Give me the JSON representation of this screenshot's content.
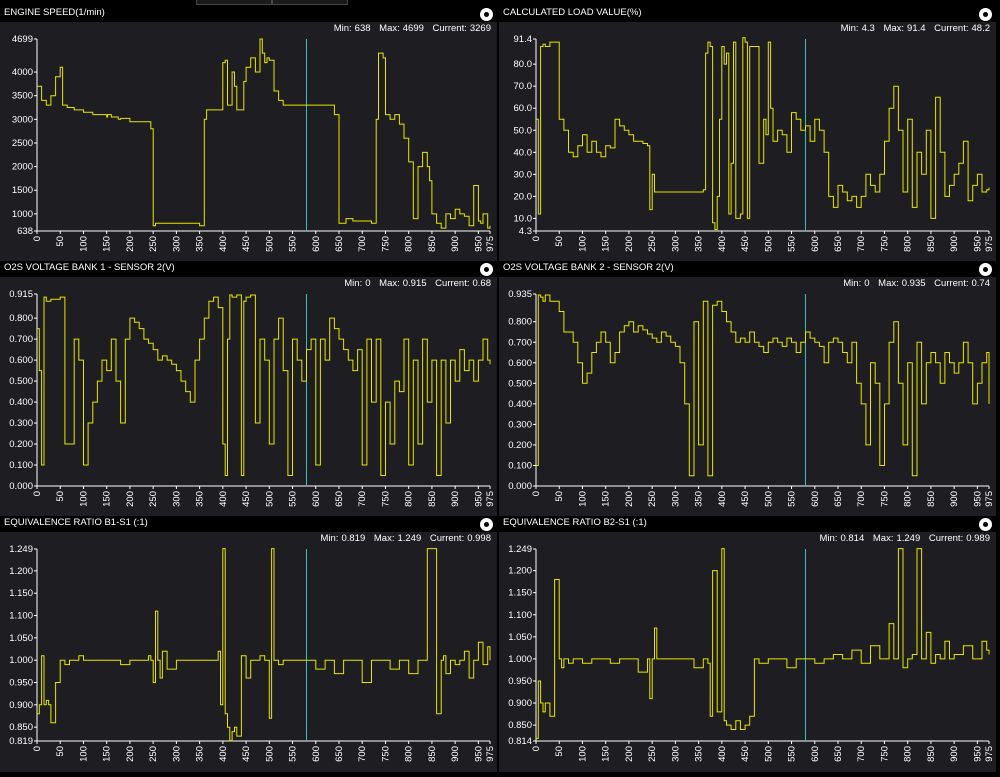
{
  "colors": {
    "trace": "#e6e600",
    "cursor": "#3ec0c0",
    "plot_bg": "#1d1d22",
    "axis": "#ffffff"
  },
  "stat_labels": {
    "min": "Min:",
    "max": "Max:",
    "current": "Current:"
  },
  "x_ticks": [
    "0",
    "50",
    "100",
    "150",
    "200",
    "250",
    "300",
    "350",
    "400",
    "450",
    "500",
    "550",
    "600",
    "650",
    "700",
    "750",
    "800",
    "850",
    "900",
    "950",
    "975"
  ],
  "panels": [
    {
      "title": "ENGINE SPEED(1/min)",
      "min": "638",
      "max": "4699",
      "current": "3269"
    },
    {
      "title": "CALCULATED LOAD VALUE(%)",
      "min": "4.3",
      "max": "91.4",
      "current": "48.2"
    },
    {
      "title": "O2S VOLTAGE BANK 1 - SENSOR 2(V)",
      "min": "0",
      "max": "0.915",
      "current": "0.68"
    },
    {
      "title": "O2S VOLTAGE BANK 2 - SENSOR 2(V)",
      "min": "0",
      "max": "0.935",
      "current": "0.74"
    },
    {
      "title": "EQUIVALENCE RATIO B1-S1 (:1)",
      "min": "0.819",
      "max": "1.249",
      "current": "0.998"
    },
    {
      "title": "EQUIVALENCE RATIO B2-S1 (:1)",
      "min": "0.814",
      "max": "1.249",
      "current": "0.989"
    }
  ],
  "chart_data": [
    {
      "type": "line",
      "title": "ENGINE SPEED(1/min)",
      "xlim": [
        0,
        975
      ],
      "ylim": [
        638,
        4699
      ],
      "cursor_x": 580,
      "yticks": [
        638,
        1000,
        1500,
        2000,
        2500,
        3000,
        3500,
        4000,
        4699
      ],
      "ytick_labels": [
        "638",
        "1000",
        "1500",
        "2000",
        "2500",
        "3000",
        "3500",
        "4000",
        "4699"
      ],
      "x": [
        0,
        10,
        20,
        30,
        40,
        50,
        55,
        65,
        80,
        100,
        120,
        150,
        152,
        160,
        175,
        180,
        200,
        240,
        245,
        250,
        255,
        300,
        350,
        360,
        365,
        400,
        405,
        410,
        420,
        425,
        430,
        445,
        450,
        460,
        470,
        480,
        485,
        490,
        495,
        500,
        510,
        520,
        530,
        550,
        575,
        580,
        630,
        640,
        650,
        665,
        680,
        700,
        720,
        730,
        735,
        745,
        750,
        760,
        770,
        780,
        790,
        800,
        810,
        820,
        830,
        840,
        845,
        850,
        860,
        870,
        880,
        890,
        900,
        910,
        920,
        930,
        940,
        950,
        955,
        960,
        970,
        975
      ],
      "y": [
        3700,
        3400,
        3300,
        3500,
        3900,
        4100,
        3300,
        3250,
        3200,
        3150,
        3100,
        3050,
        3100,
        3050,
        3000,
        3020,
        2950,
        2950,
        2800,
        750,
        800,
        800,
        750,
        3000,
        3200,
        4200,
        4250,
        3300,
        4000,
        3700,
        3200,
        3800,
        4100,
        4300,
        4000,
        4700,
        4400,
        4200,
        4300,
        4250,
        3600,
        3400,
        3300,
        3300,
        3300,
        3300,
        3300,
        3100,
        800,
        900,
        850,
        850,
        800,
        3000,
        4400,
        4300,
        3100,
        3000,
        3100,
        2900,
        2600,
        2100,
        900,
        2000,
        2300,
        2000,
        1700,
        1000,
        800,
        700,
        1000,
        900,
        1100,
        1000,
        950,
        750,
        1600,
        850,
        800,
        1000,
        700,
        750
      ]
    },
    {
      "type": "line",
      "title": "CALCULATED LOAD VALUE(%)",
      "xlim": [
        0,
        975
      ],
      "ylim": [
        4.3,
        91.4
      ],
      "cursor_x": 580,
      "yticks": [
        4.3,
        10,
        20,
        30,
        40,
        50,
        60,
        70,
        80,
        91.4
      ],
      "ytick_labels": [
        "4.3",
        "10.0",
        "20.0",
        "30.0",
        "40.0",
        "50.0",
        "60.0",
        "70.0",
        "80.0",
        "91.4"
      ],
      "x": [
        0,
        5,
        10,
        15,
        20,
        30,
        50,
        60,
        70,
        80,
        90,
        100,
        110,
        120,
        130,
        140,
        150,
        160,
        170,
        180,
        190,
        200,
        210,
        220,
        230,
        240,
        245,
        250,
        255,
        300,
        350,
        360,
        365,
        370,
        375,
        380,
        385,
        390,
        395,
        400,
        405,
        410,
        415,
        420,
        425,
        430,
        440,
        445,
        450,
        455,
        460,
        470,
        480,
        490,
        495,
        500,
        505,
        510,
        520,
        530,
        540,
        550,
        560,
        570,
        580,
        590,
        600,
        610,
        620,
        630,
        640,
        650,
        660,
        670,
        680,
        690,
        700,
        710,
        720,
        730,
        740,
        750,
        760,
        770,
        780,
        790,
        800,
        810,
        820,
        830,
        840,
        850,
        860,
        870,
        880,
        890,
        900,
        910,
        920,
        930,
        940,
        950,
        960,
        970,
        975
      ],
      "y": [
        55,
        12,
        88,
        89,
        88,
        90,
        55,
        50,
        40,
        38,
        43,
        48,
        40,
        45,
        40,
        38,
        43,
        42,
        55,
        52,
        50,
        48,
        45,
        45,
        44,
        43,
        14,
        30,
        22,
        22,
        22,
        23,
        85,
        90,
        88,
        8,
        5,
        20,
        55,
        88,
        80,
        85,
        12,
        35,
        90,
        10,
        12,
        92,
        90,
        10,
        88,
        88,
        35,
        55,
        48,
        90,
        60,
        45,
        50,
        48,
        40,
        58,
        55,
        50,
        52,
        45,
        55,
        50,
        40,
        20,
        15,
        25,
        22,
        18,
        20,
        15,
        20,
        30,
        25,
        22,
        30,
        45,
        60,
        70,
        50,
        22,
        55,
        15,
        40,
        30,
        50,
        10,
        65,
        40,
        20,
        25,
        30,
        35,
        45,
        18,
        25,
        30,
        22,
        23,
        24
      ]
    },
    {
      "type": "line",
      "title": "O2S VOLTAGE BANK 1 - SENSOR 2(V)",
      "xlim": [
        0,
        975
      ],
      "ylim": [
        0,
        0.915
      ],
      "cursor_x": 580,
      "yticks": [
        0,
        0.1,
        0.2,
        0.3,
        0.4,
        0.5,
        0.6,
        0.7,
        0.8,
        0.915
      ],
      "ytick_labels": [
        "0.000",
        "0.100",
        "0.200",
        "0.300",
        "0.400",
        "0.500",
        "0.600",
        "0.700",
        "0.800",
        "0.915"
      ],
      "x": [
        0,
        5,
        10,
        15,
        20,
        30,
        50,
        60,
        80,
        90,
        100,
        110,
        120,
        130,
        140,
        150,
        160,
        170,
        180,
        190,
        200,
        210,
        220,
        230,
        240,
        250,
        260,
        270,
        280,
        290,
        300,
        310,
        320,
        330,
        340,
        350,
        360,
        370,
        380,
        390,
        400,
        405,
        410,
        415,
        420,
        430,
        440,
        445,
        450,
        460,
        470,
        480,
        490,
        500,
        510,
        520,
        530,
        540,
        550,
        560,
        570,
        580,
        590,
        600,
        610,
        620,
        630,
        640,
        650,
        660,
        670,
        680,
        690,
        700,
        710,
        720,
        730,
        740,
        750,
        760,
        770,
        780,
        790,
        800,
        810,
        820,
        830,
        840,
        850,
        860,
        870,
        880,
        890,
        900,
        910,
        920,
        930,
        940,
        950,
        960,
        970,
        975
      ],
      "y": [
        0.75,
        0.55,
        0.1,
        0.9,
        0.88,
        0.89,
        0.9,
        0.2,
        0.7,
        0.6,
        0.1,
        0.3,
        0.4,
        0.5,
        0.6,
        0.55,
        0.7,
        0.5,
        0.3,
        0.7,
        0.8,
        0.78,
        0.75,
        0.7,
        0.68,
        0.65,
        0.6,
        0.62,
        0.6,
        0.58,
        0.55,
        0.5,
        0.45,
        0.4,
        0.6,
        0.7,
        0.8,
        0.88,
        0.9,
        0.85,
        0.2,
        0.05,
        0.7,
        0.91,
        0.9,
        0.91,
        0.05,
        0.88,
        0.9,
        0.91,
        0.3,
        0.7,
        0.6,
        0.2,
        0.7,
        0.8,
        0.55,
        0.05,
        0.7,
        0.6,
        0.5,
        0.65,
        0.7,
        0.1,
        0.7,
        0.6,
        0.8,
        0.75,
        0.7,
        0.65,
        0.6,
        0.55,
        0.65,
        0.1,
        0.7,
        0.4,
        0.7,
        0.05,
        0.4,
        0.2,
        0.5,
        0.45,
        0.7,
        0.1,
        0.6,
        0.2,
        0.7,
        0.4,
        0.6,
        0.05,
        0.6,
        0.3,
        0.6,
        0.5,
        0.65,
        0.55,
        0.6,
        0.5,
        0.6,
        0.7,
        0.6,
        0.58
      ]
    },
    {
      "type": "line",
      "title": "O2S VOLTAGE BANK 2 - SENSOR 2(V)",
      "xlim": [
        0,
        975
      ],
      "ylim": [
        0,
        0.935
      ],
      "cursor_x": 580,
      "yticks": [
        0,
        0.1,
        0.2,
        0.3,
        0.4,
        0.5,
        0.6,
        0.7,
        0.8,
        0.935
      ],
      "ytick_labels": [
        "0.000",
        "0.100",
        "0.200",
        "0.300",
        "0.400",
        "0.500",
        "0.600",
        "0.700",
        "0.800",
        "0.935"
      ],
      "x": [
        0,
        5,
        10,
        15,
        20,
        30,
        50,
        60,
        80,
        90,
        100,
        110,
        120,
        130,
        140,
        150,
        160,
        170,
        180,
        190,
        200,
        210,
        220,
        230,
        240,
        250,
        260,
        270,
        280,
        290,
        300,
        310,
        320,
        330,
        340,
        350,
        360,
        370,
        380,
        390,
        400,
        410,
        420,
        430,
        440,
        450,
        460,
        470,
        480,
        490,
        500,
        510,
        520,
        530,
        540,
        550,
        560,
        570,
        580,
        590,
        600,
        610,
        620,
        630,
        640,
        650,
        660,
        670,
        680,
        690,
        700,
        710,
        720,
        730,
        740,
        750,
        760,
        770,
        780,
        790,
        800,
        810,
        820,
        830,
        840,
        850,
        860,
        870,
        880,
        890,
        900,
        910,
        920,
        930,
        940,
        950,
        960,
        970,
        975
      ],
      "y": [
        0.1,
        0.93,
        0.92,
        0.9,
        0.93,
        0.9,
        0.85,
        0.75,
        0.7,
        0.6,
        0.5,
        0.55,
        0.65,
        0.7,
        0.75,
        0.7,
        0.6,
        0.65,
        0.75,
        0.78,
        0.8,
        0.75,
        0.78,
        0.76,
        0.74,
        0.72,
        0.7,
        0.75,
        0.73,
        0.7,
        0.68,
        0.6,
        0.4,
        0.05,
        0.8,
        0.2,
        0.9,
        0.05,
        0.88,
        0.9,
        0.85,
        0.8,
        0.75,
        0.7,
        0.72,
        0.7,
        0.75,
        0.7,
        0.68,
        0.65,
        0.7,
        0.72,
        0.7,
        0.68,
        0.72,
        0.7,
        0.65,
        0.7,
        0.75,
        0.72,
        0.7,
        0.68,
        0.6,
        0.7,
        0.72,
        0.7,
        0.65,
        0.6,
        0.7,
        0.5,
        0.4,
        0.2,
        0.6,
        0.5,
        0.1,
        0.4,
        0.7,
        0.8,
        0.5,
        0.2,
        0.6,
        0.05,
        0.7,
        0.4,
        0.6,
        0.65,
        0.6,
        0.5,
        0.65,
        0.6,
        0.55,
        0.6,
        0.7,
        0.6,
        0.4,
        0.5,
        0.6,
        0.65,
        0.4
      ]
    },
    {
      "type": "line",
      "title": "EQUIVALENCE RATIO B1-S1 (:1)",
      "xlim": [
        0,
        975
      ],
      "ylim": [
        0.819,
        1.249
      ],
      "cursor_x": 580,
      "yticks": [
        0.819,
        0.85,
        0.9,
        0.95,
        1.0,
        1.05,
        1.1,
        1.15,
        1.2,
        1.249
      ],
      "ytick_labels": [
        "0.819",
        "0.850",
        "0.900",
        "0.950",
        "1.000",
        "1.050",
        "1.100",
        "1.150",
        "1.200",
        "1.249"
      ],
      "x": [
        0,
        5,
        10,
        15,
        20,
        25,
        30,
        40,
        50,
        60,
        70,
        80,
        90,
        100,
        120,
        140,
        160,
        180,
        200,
        220,
        240,
        245,
        250,
        255,
        260,
        265,
        270,
        280,
        300,
        320,
        340,
        360,
        380,
        390,
        395,
        400,
        405,
        410,
        415,
        420,
        425,
        430,
        440,
        450,
        460,
        470,
        480,
        490,
        500,
        505,
        510,
        515,
        520,
        530,
        540,
        560,
        580,
        600,
        620,
        640,
        660,
        680,
        700,
        720,
        740,
        760,
        780,
        800,
        820,
        840,
        860,
        870,
        875,
        880,
        890,
        900,
        910,
        920,
        930,
        940,
        950,
        960,
        970,
        975
      ],
      "y": [
        0.88,
        0.9,
        1.01,
        0.9,
        0.91,
        0.9,
        0.86,
        0.95,
        1.0,
        0.99,
        1.0,
        1.0,
        1.01,
        1.0,
        1.0,
        1.0,
        1.0,
        0.99,
        1.0,
        1.0,
        1.01,
        1.0,
        0.95,
        1.11,
        1.0,
        0.96,
        1.02,
        0.98,
        1.0,
        1.0,
        1.0,
        1.0,
        1.0,
        1.02,
        0.9,
        1.25,
        0.88,
        0.85,
        0.82,
        0.84,
        0.85,
        0.83,
        1.01,
        0.96,
        1.0,
        1.0,
        1.01,
        1.0,
        0.87,
        1.25,
        1.0,
        1.0,
        0.99,
        1.0,
        1.0,
        1.0,
        1.0,
        0.98,
        1.0,
        0.97,
        1.0,
        1.0,
        0.95,
        1.0,
        1.0,
        0.98,
        1.0,
        0.97,
        1.0,
        1.25,
        0.88,
        1.0,
        1.01,
        0.97,
        1.0,
        0.99,
        1.0,
        1.02,
        0.96,
        1.0,
        1.04,
        0.99,
        1.03,
        1.0
      ]
    },
    {
      "type": "line",
      "title": "EQUIVALENCE RATIO B2-S1 (:1)",
      "xlim": [
        0,
        975
      ],
      "ylim": [
        0.814,
        1.249
      ],
      "cursor_x": 580,
      "yticks": [
        0.814,
        0.85,
        0.9,
        0.95,
        1.0,
        1.05,
        1.1,
        1.15,
        1.2,
        1.249
      ],
      "ytick_labels": [
        "0.814",
        "0.850",
        "0.900",
        "0.950",
        "1.000",
        "1.050",
        "1.100",
        "1.150",
        "1.200",
        "1.249"
      ],
      "x": [
        0,
        5,
        10,
        15,
        20,
        30,
        40,
        50,
        55,
        60,
        70,
        80,
        100,
        120,
        140,
        160,
        180,
        200,
        220,
        240,
        245,
        250,
        255,
        260,
        280,
        300,
        320,
        340,
        360,
        370,
        375,
        380,
        390,
        400,
        405,
        410,
        420,
        430,
        440,
        450,
        460,
        470,
        480,
        500,
        520,
        540,
        560,
        580,
        600,
        620,
        640,
        660,
        680,
        700,
        720,
        740,
        760,
        770,
        780,
        790,
        800,
        810,
        820,
        830,
        840,
        850,
        860,
        870,
        880,
        890,
        900,
        920,
        940,
        960,
        970,
        975
      ],
      "y": [
        0.82,
        0.95,
        0.9,
        0.88,
        0.9,
        0.87,
        1.18,
        1.0,
        0.98,
        1.0,
        0.99,
        1.0,
        0.99,
        1.0,
        1.0,
        0.99,
        1.0,
        1.0,
        0.97,
        1.0,
        0.91,
        1.0,
        1.07,
        1.0,
        1.0,
        1.0,
        1.0,
        0.98,
        1.0,
        0.99,
        0.87,
        1.2,
        0.88,
        1.25,
        0.86,
        0.85,
        0.84,
        0.86,
        0.84,
        0.85,
        0.87,
        1.0,
        0.99,
        1.0,
        1.0,
        0.98,
        1.0,
        1.0,
        0.99,
        1.0,
        1.01,
        1.0,
        1.02,
        0.99,
        1.03,
        1.0,
        1.08,
        1.0,
        1.25,
        0.98,
        1.0,
        1.01,
        1.25,
        1.0,
        1.06,
        0.99,
        1.01,
        1.0,
        1.04,
        1.0,
        1.01,
        1.03,
        1.0,
        1.04,
        1.02,
        1.01
      ]
    }
  ]
}
